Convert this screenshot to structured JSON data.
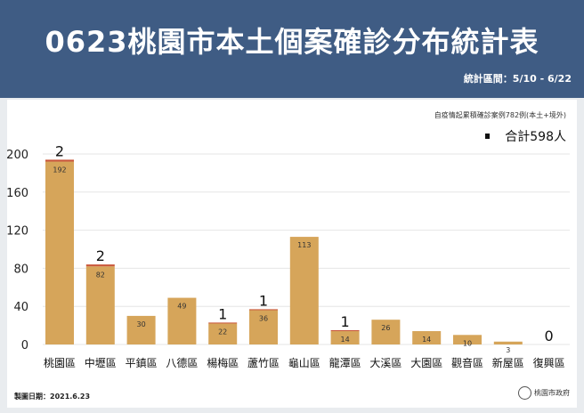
{
  "header": {
    "title": "0623桃園市本土個案確診分布統計表",
    "period": "統計區間：5/10 - 6/22"
  },
  "chart_data": {
    "type": "bar",
    "stacked": true,
    "note": "自疫情起累積確診案例782例(本土+境外)",
    "total": "合計598人",
    "categories": [
      "桃園區",
      "中壢區",
      "平鎮區",
      "八德區",
      "楊梅區",
      "蘆竹區",
      "龜山區",
      "龍潭區",
      "大溪區",
      "大園區",
      "觀音區",
      "新屋區",
      "復興區"
    ],
    "series": [
      {
        "values": [
          192,
          82,
          30,
          49,
          22,
          36,
          113,
          14,
          26,
          14,
          10,
          3,
          0
        ],
        "color": "#d6a55a"
      },
      {
        "values": [
          2,
          2,
          0,
          0,
          1,
          1,
          0,
          1,
          0,
          0,
          0,
          0,
          0
        ],
        "color": "#c9563a"
      }
    ],
    "top_labels": [
      "2",
      "2",
      "",
      "",
      "1",
      "1",
      "",
      "1",
      "",
      "",
      "",
      "",
      "0"
    ],
    "yticks": [
      0,
      40,
      80,
      120,
      160,
      200
    ],
    "ylim": [
      0,
      200
    ],
    "grid": true
  },
  "footer": {
    "date": "製圖日期：2021.6.23",
    "logo": "桃園市政府"
  }
}
